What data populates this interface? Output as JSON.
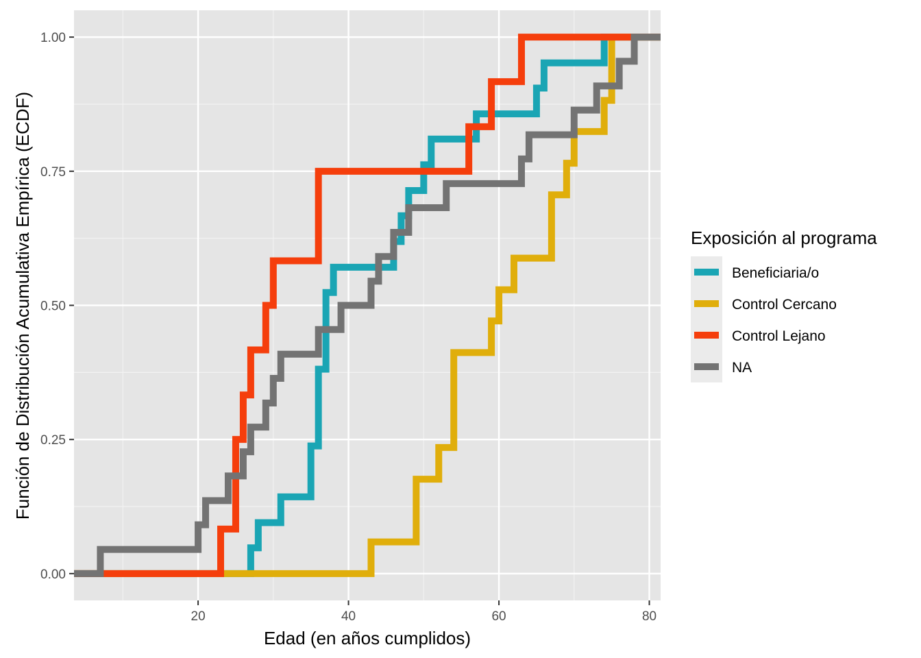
{
  "chart_data": {
    "type": "line",
    "step": true,
    "xlabel": "Edad (en años cumplidos)",
    "ylabel": "Función de Distribución Acumulativa Empírica (ECDF)",
    "xlim": [
      3.5,
      81.5
    ],
    "ylim": [
      -0.05,
      1.05
    ],
    "x_ticks": [
      20,
      40,
      60,
      80
    ],
    "x_tick_labels": [
      "20",
      "40",
      "60",
      "80"
    ],
    "y_ticks": [
      0,
      0.25,
      0.5,
      0.75,
      1
    ],
    "y_tick_labels": [
      "0.00",
      "0.25",
      "0.50",
      "0.75",
      "1.00"
    ],
    "grid": true,
    "legend": {
      "title": "Exposición al programa",
      "position": "right"
    },
    "series": [
      {
        "name": "Beneficiaria/o",
        "color": "#1aa5b4",
        "steps": [
          [
            27,
            0.048
          ],
          [
            28,
            0.095
          ],
          [
            31,
            0.143
          ],
          [
            35,
            0.238
          ],
          [
            36,
            0.381
          ],
          [
            37,
            0.524
          ],
          [
            38,
            0.571
          ],
          [
            46,
            0.619
          ],
          [
            47,
            0.667
          ],
          [
            48,
            0.714
          ],
          [
            50,
            0.762
          ],
          [
            51,
            0.81
          ],
          [
            57,
            0.857
          ],
          [
            65,
            0.905
          ],
          [
            66,
            0.952
          ],
          [
            74,
            1.0
          ]
        ]
      },
      {
        "name": "Control Cercano",
        "color": "#e0ae0b",
        "steps": [
          [
            43,
            0.059
          ],
          [
            49,
            0.176
          ],
          [
            52,
            0.235
          ],
          [
            54,
            0.412
          ],
          [
            59,
            0.471
          ],
          [
            60,
            0.529
          ],
          [
            62,
            0.588
          ],
          [
            67,
            0.706
          ],
          [
            69,
            0.765
          ],
          [
            70,
            0.824
          ],
          [
            74,
            0.882
          ],
          [
            75,
            1.0
          ]
        ]
      },
      {
        "name": "Control Lejano",
        "color": "#f53e0c",
        "steps": [
          [
            23,
            0.083
          ],
          [
            25,
            0.25
          ],
          [
            26,
            0.333
          ],
          [
            27,
            0.417
          ],
          [
            29,
            0.5
          ],
          [
            30,
            0.583
          ],
          [
            36,
            0.75
          ],
          [
            56,
            0.833
          ],
          [
            59,
            0.917
          ],
          [
            63,
            1.0
          ]
        ]
      },
      {
        "name": "NA",
        "color": "#737373",
        "steps": [
          [
            7,
            0.045
          ],
          [
            20,
            0.091
          ],
          [
            21,
            0.136
          ],
          [
            24,
            0.182
          ],
          [
            26,
            0.227
          ],
          [
            27,
            0.273
          ],
          [
            29,
            0.318
          ],
          [
            30,
            0.364
          ],
          [
            31,
            0.409
          ],
          [
            36,
            0.455
          ],
          [
            39,
            0.5
          ],
          [
            43,
            0.545
          ],
          [
            44,
            0.591
          ],
          [
            46,
            0.636
          ],
          [
            48,
            0.682
          ],
          [
            53,
            0.727
          ],
          [
            63,
            0.773
          ],
          [
            64,
            0.818
          ],
          [
            70,
            0.864
          ],
          [
            73,
            0.909
          ],
          [
            76,
            0.955
          ],
          [
            78,
            1.0
          ]
        ]
      }
    ]
  }
}
